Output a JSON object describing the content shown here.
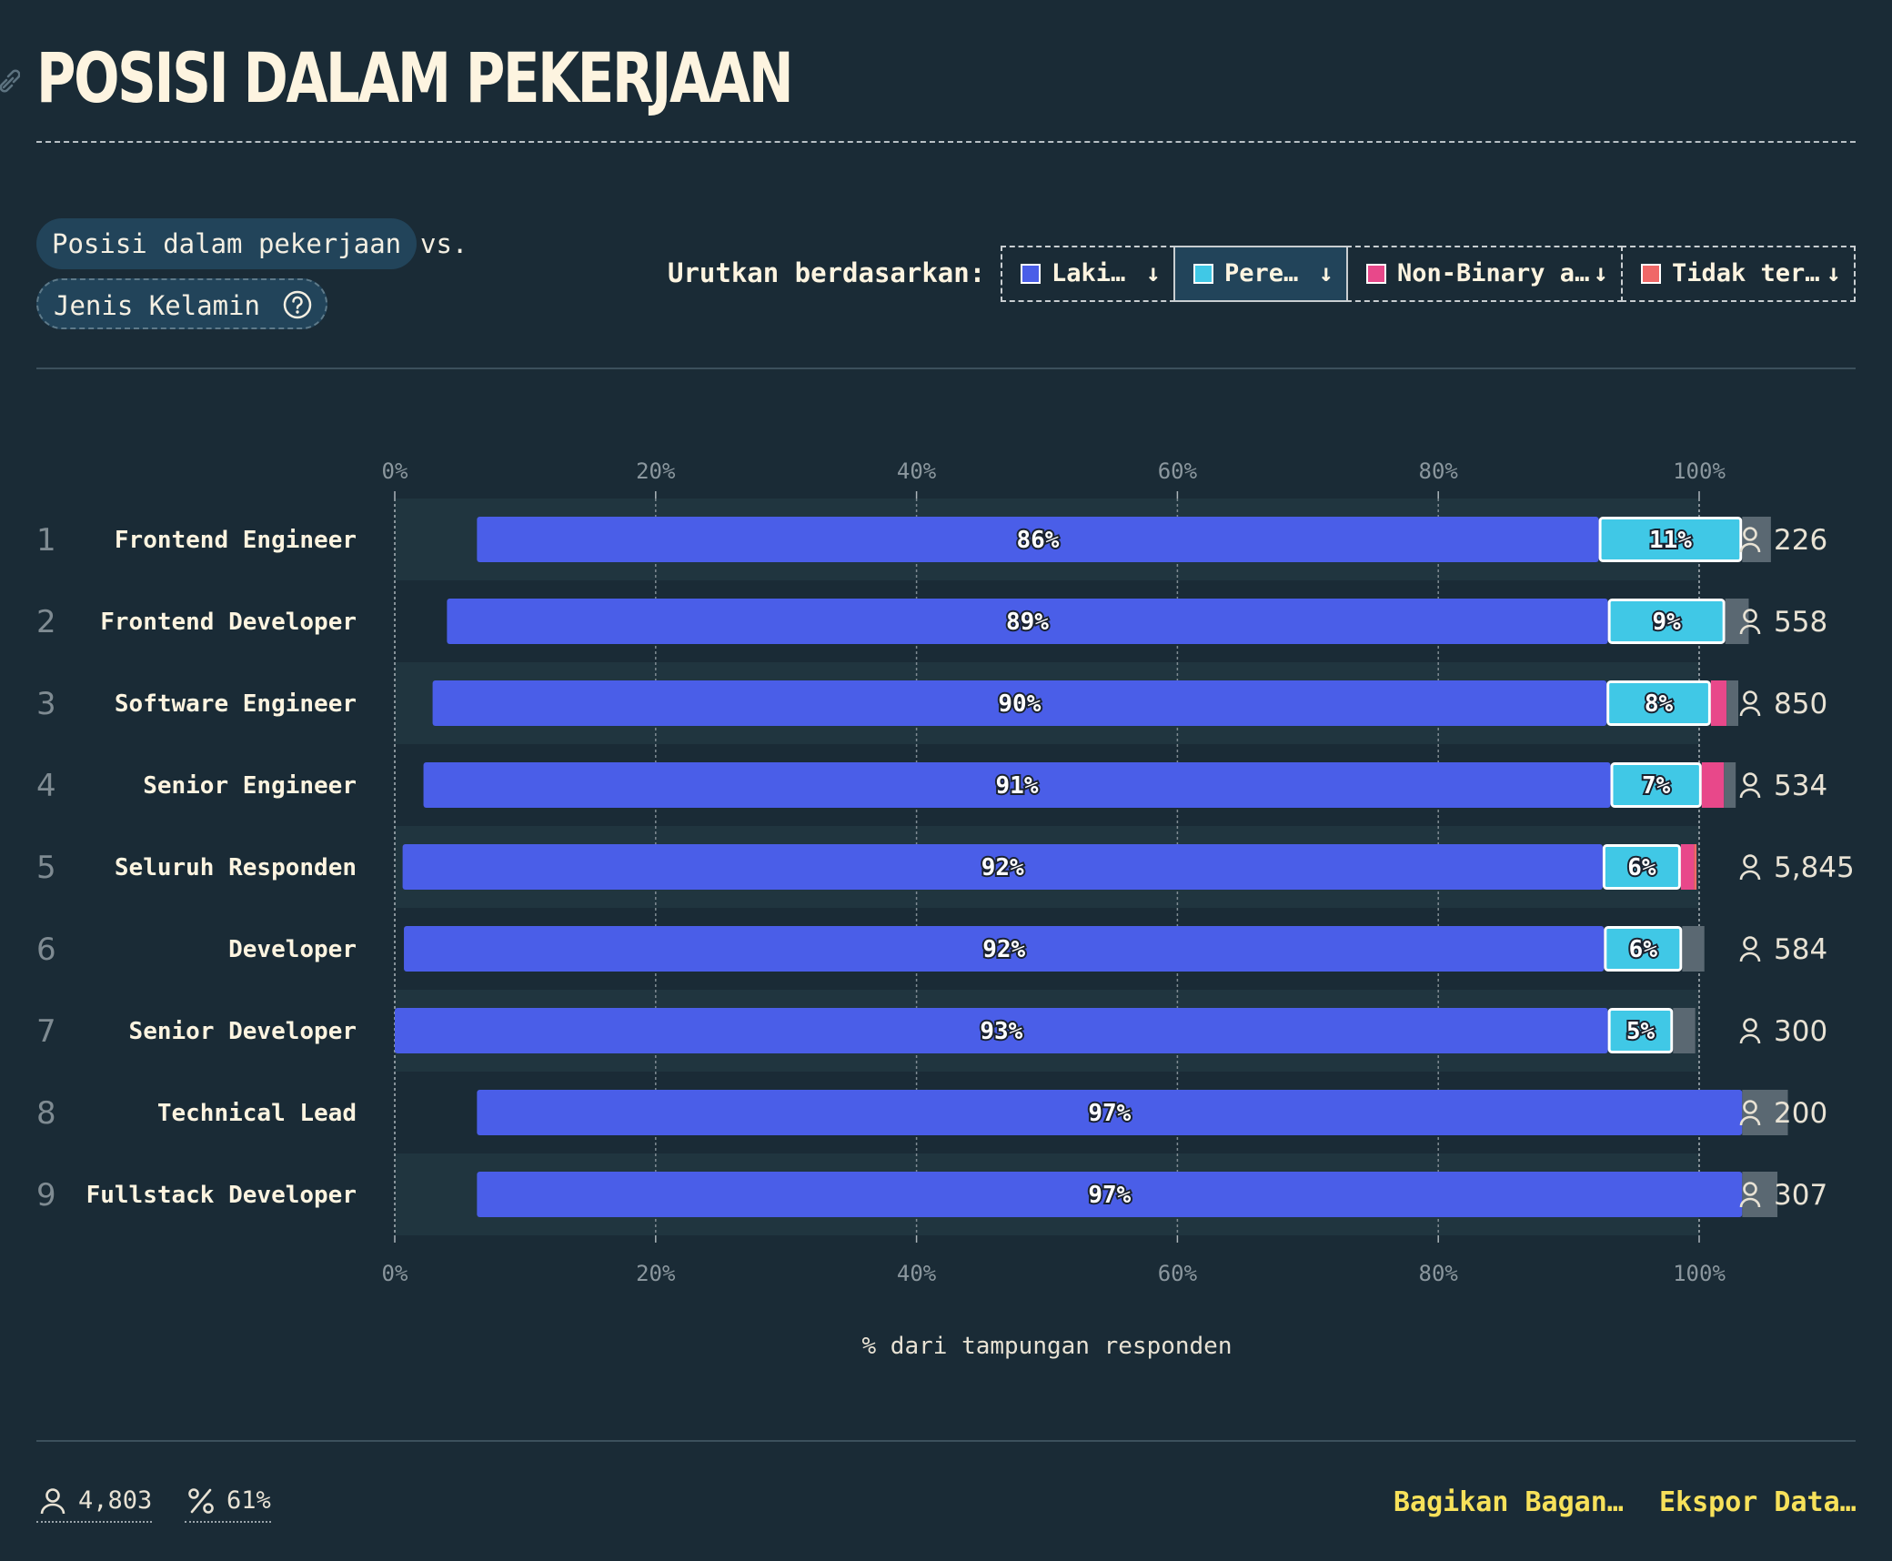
{
  "header": {
    "title": "POSISI DALAM PEKERJAAN"
  },
  "controls": {
    "variable_1": "Posisi dalam pekerjaan",
    "vs": "vs.",
    "variable_2": "Jenis Kelamin",
    "sort_label": "Urutkan berdasarkan:",
    "sort_buttons": [
      {
        "label": "Laki…",
        "arrow": "↓",
        "color": "#4a5ee8"
      },
      {
        "label": "Pere…",
        "arrow": "↓",
        "color": "#40c8e6"
      },
      {
        "label": "Non-Binary a…",
        "arrow": "↓",
        "color": "#e8488a"
      },
      {
        "label": "Tidak ter…",
        "arrow": "↓",
        "color": "#f06868"
      }
    ]
  },
  "chart_data": {
    "type": "bar",
    "orientation": "horizontal",
    "stacked": true,
    "xlabel": "% dari tampungan responden",
    "xlim": [
      0,
      100
    ],
    "x_ticks": [
      "0%",
      "20%",
      "40%",
      "60%",
      "80%",
      "100%"
    ],
    "grid": true,
    "categories": [
      "Frontend Engineer",
      "Frontend Developer",
      "Software Engineer",
      "Senior Engineer",
      "Seluruh Responden",
      "Developer",
      "Senior Developer",
      "Technical Lead",
      "Fullstack Developer"
    ],
    "ranks": [
      "1",
      "2",
      "3",
      "4",
      "5",
      "6",
      "7",
      "8",
      "9"
    ],
    "respondent_counts": [
      "226",
      "558",
      "850",
      "534",
      "5,845",
      "584",
      "300",
      "200",
      "307"
    ],
    "bar_start": [
      6.3,
      4.0,
      2.9,
      2.2,
      0.6,
      0.7,
      0.0,
      6.3,
      6.3
    ],
    "series": [
      {
        "color": "#4a5ee8",
        "values": [
          86,
          89,
          90,
          91,
          92,
          92,
          93,
          97,
          97
        ],
        "labels": [
          "86%",
          "89%",
          "90%",
          "91%",
          "92%",
          "92%",
          "93%",
          "97%",
          "97%"
        ]
      },
      {
        "color": "#40c8e6",
        "values": [
          11,
          9,
          8,
          7,
          6,
          6,
          5,
          0,
          0
        ],
        "labels": [
          "11%",
          "9%",
          "8%",
          "7%",
          "6%",
          "6%",
          "5%",
          "",
          ""
        ]
      },
      {
        "color": "#e8488a",
        "values": [
          0,
          0,
          1.2,
          1.7,
          1.0,
          0,
          0,
          0,
          0
        ]
      },
      {
        "color": "#f06868",
        "values": [
          0,
          0,
          0,
          0,
          0.2,
          0,
          0,
          0,
          0
        ]
      },
      {
        "color": "#5a6872",
        "values": [
          2.2,
          1.8,
          0.9,
          0.9,
          0,
          1.7,
          1.7,
          3.5,
          2.7
        ]
      }
    ]
  },
  "footer": {
    "total_respondents": "4,803",
    "percentage": "61%",
    "share_label": "Bagikan Bagan…",
    "export_label": "Ekspor Data…"
  }
}
